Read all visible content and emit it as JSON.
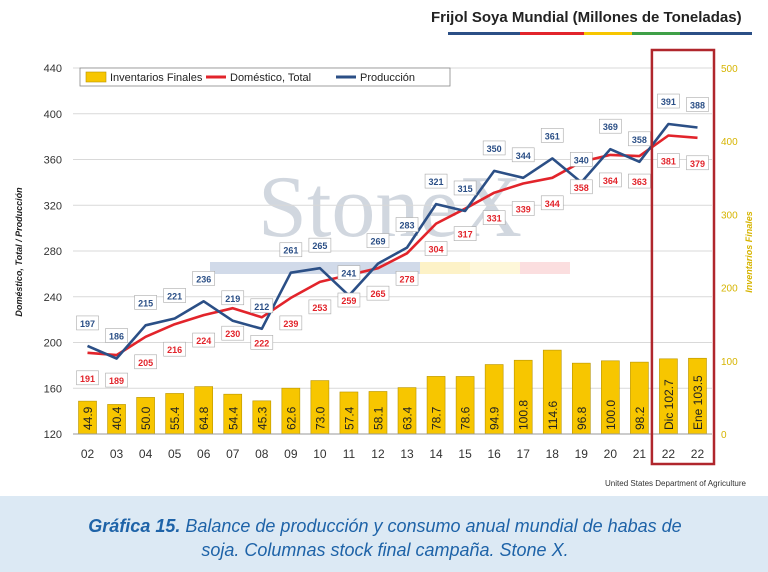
{
  "header": {
    "title": "Frijol Soya Mundial (Millones de Toneladas)"
  },
  "watermark": "StoneX",
  "source": "United States Department of Agriculture",
  "caption": {
    "label": "Gráfica 15.",
    "line1": " Balance de producción y consumo anual mundial de habas de",
    "line2": "soja. Columnas stock final campaña. Stone X."
  },
  "colors": {
    "bars": "#f7c600",
    "domestic": "#e2242b",
    "production": "#2b4f86",
    "highlight": "#b0262c",
    "right_axis": "#d6b400"
  },
  "chart_data": {
    "type": "bar+line",
    "categories": [
      "02",
      "03",
      "04",
      "05",
      "06",
      "07",
      "08",
      "09",
      "10",
      "11",
      "12",
      "13",
      "14",
      "15",
      "16",
      "17",
      "18",
      "19",
      "20",
      "21",
      "22",
      "22"
    ],
    "ylabel": "Doméstico, Total / Producción",
    "y2label": "Inventarios Finales",
    "ylim": [
      120,
      440
    ],
    "yticks": [
      "440",
      "400",
      "360",
      "320",
      "280",
      "240",
      "200",
      "160",
      "120"
    ],
    "y2lim": [
      0,
      500
    ],
    "y2ticks": [
      "500",
      "400",
      "300",
      "200",
      "100",
      "0"
    ],
    "legend_position": "top-left",
    "series": [
      {
        "name": "Inventarios Finales",
        "type": "bar",
        "axis": "right",
        "values": [
          44.9,
          40.4,
          50.0,
          55.4,
          64.8,
          54.4,
          45.3,
          62.6,
          73.0,
          57.4,
          58.1,
          63.4,
          78.7,
          78.6,
          94.9,
          100.8,
          114.6,
          96.8,
          100.0,
          98.2,
          102.7,
          103.5
        ],
        "labels": [
          "44.9",
          "40.4",
          "50.0",
          "55.4",
          "64.8",
          "54.4",
          "45.3",
          "62.6",
          "73.0",
          "57.4",
          "58.1",
          "63.4",
          "78.7",
          "78.6",
          "94.9",
          "100.8",
          "114.6",
          "96.8",
          "100.0",
          "98.2",
          "Dic 102.7",
          "Ene 103.5"
        ]
      },
      {
        "name": "Doméstico, Total",
        "type": "line",
        "axis": "left",
        "values": [
          191,
          189,
          205,
          216,
          224,
          230,
          222,
          239,
          253,
          259,
          265,
          278,
          304,
          317,
          331,
          339,
          344,
          358,
          364,
          363,
          381,
          379
        ],
        "labels": [
          "191",
          "189",
          "205",
          "216",
          "224",
          "230",
          "222",
          "239",
          "253",
          "259",
          "265",
          "278",
          "304",
          "317",
          "331",
          "339",
          "344",
          "358",
          "364",
          "363",
          "381",
          "379"
        ]
      },
      {
        "name": "Producción",
        "type": "line",
        "axis": "left",
        "values": [
          197,
          186,
          215,
          221,
          236,
          219,
          212,
          261,
          265,
          241,
          269,
          283,
          321,
          315,
          350,
          344,
          361,
          340,
          369,
          358,
          391,
          388
        ],
        "labels": [
          "197",
          "186",
          "215",
          "221",
          "236",
          "219",
          "212",
          "261",
          "265",
          "241",
          "269",
          "283",
          "321",
          "315",
          "350",
          "344",
          "361",
          "340",
          "369",
          "358",
          "391",
          "388"
        ]
      }
    ]
  }
}
